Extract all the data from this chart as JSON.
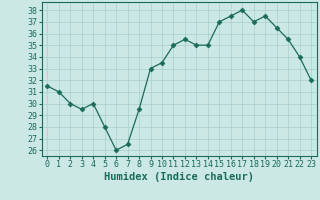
{
  "x": [
    0,
    1,
    2,
    3,
    4,
    5,
    6,
    7,
    8,
    9,
    10,
    11,
    12,
    13,
    14,
    15,
    16,
    17,
    18,
    19,
    20,
    21,
    22,
    23
  ],
  "y": [
    31.5,
    31.0,
    30.0,
    29.5,
    30.0,
    28.0,
    26.0,
    26.5,
    29.5,
    33.0,
    33.5,
    35.0,
    35.5,
    35.0,
    35.0,
    37.0,
    37.5,
    38.0,
    37.0,
    37.5,
    36.5,
    35.5,
    34.0,
    32.0
  ],
  "xlabel": "Humidex (Indice chaleur)",
  "xlim": [
    -0.5,
    23.5
  ],
  "ylim": [
    25.5,
    38.7
  ],
  "yticks": [
    26,
    27,
    28,
    29,
    30,
    31,
    32,
    33,
    34,
    35,
    36,
    37,
    38
  ],
  "xticks": [
    0,
    1,
    2,
    3,
    4,
    5,
    6,
    7,
    8,
    9,
    10,
    11,
    12,
    13,
    14,
    15,
    16,
    17,
    18,
    19,
    20,
    21,
    22,
    23
  ],
  "line_color": "#1a6b5a",
  "marker": "D",
  "marker_size": 2.5,
  "bg_color": "#cce8e4",
  "grid_color": "#aacfcb",
  "axis_color": "#1a6b5a",
  "tick_fontsize": 6,
  "label_fontsize": 7.5
}
